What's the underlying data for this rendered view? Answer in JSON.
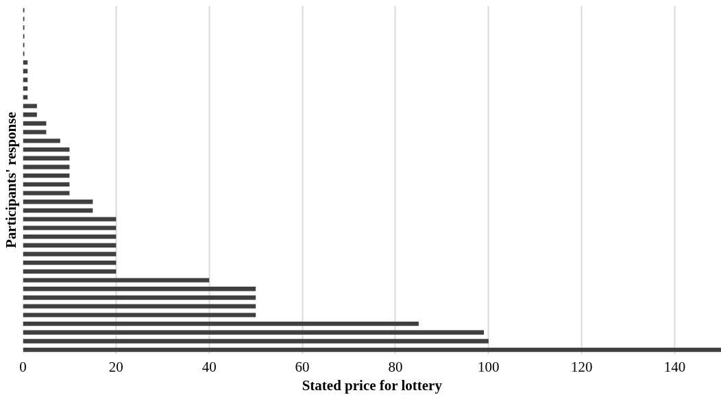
{
  "chart_data": {
    "type": "bar",
    "orientation": "horizontal",
    "xlabel": "Stated price for lottery",
    "ylabel": "Participants' response",
    "categories": [
      null,
      null,
      null,
      null,
      null,
      null,
      null,
      null,
      null,
      null,
      null,
      null,
      null,
      null,
      null,
      null,
      null,
      null,
      null,
      null,
      null,
      null,
      null,
      null,
      null,
      null,
      null,
      null,
      null,
      null,
      null,
      null,
      null,
      null,
      null,
      null,
      null,
      null,
      null,
      null
    ],
    "values": [
      0.3,
      0.3,
      0.3,
      0.3,
      0.3,
      0.3,
      1,
      1,
      1,
      1,
      1,
      3,
      3,
      5,
      5,
      8,
      10,
      10,
      10,
      10,
      10,
      10,
      15,
      15,
      20,
      20,
      20,
      20,
      20,
      20,
      20,
      40,
      50,
      50,
      50,
      50,
      85,
      99,
      100,
      150
    ],
    "color": "#404040",
    "xlim": [
      0,
      150
    ],
    "xticks": [
      0,
      20,
      40,
      60,
      80,
      100,
      120,
      140
    ],
    "grid": "x",
    "tick_labels": "x"
  }
}
